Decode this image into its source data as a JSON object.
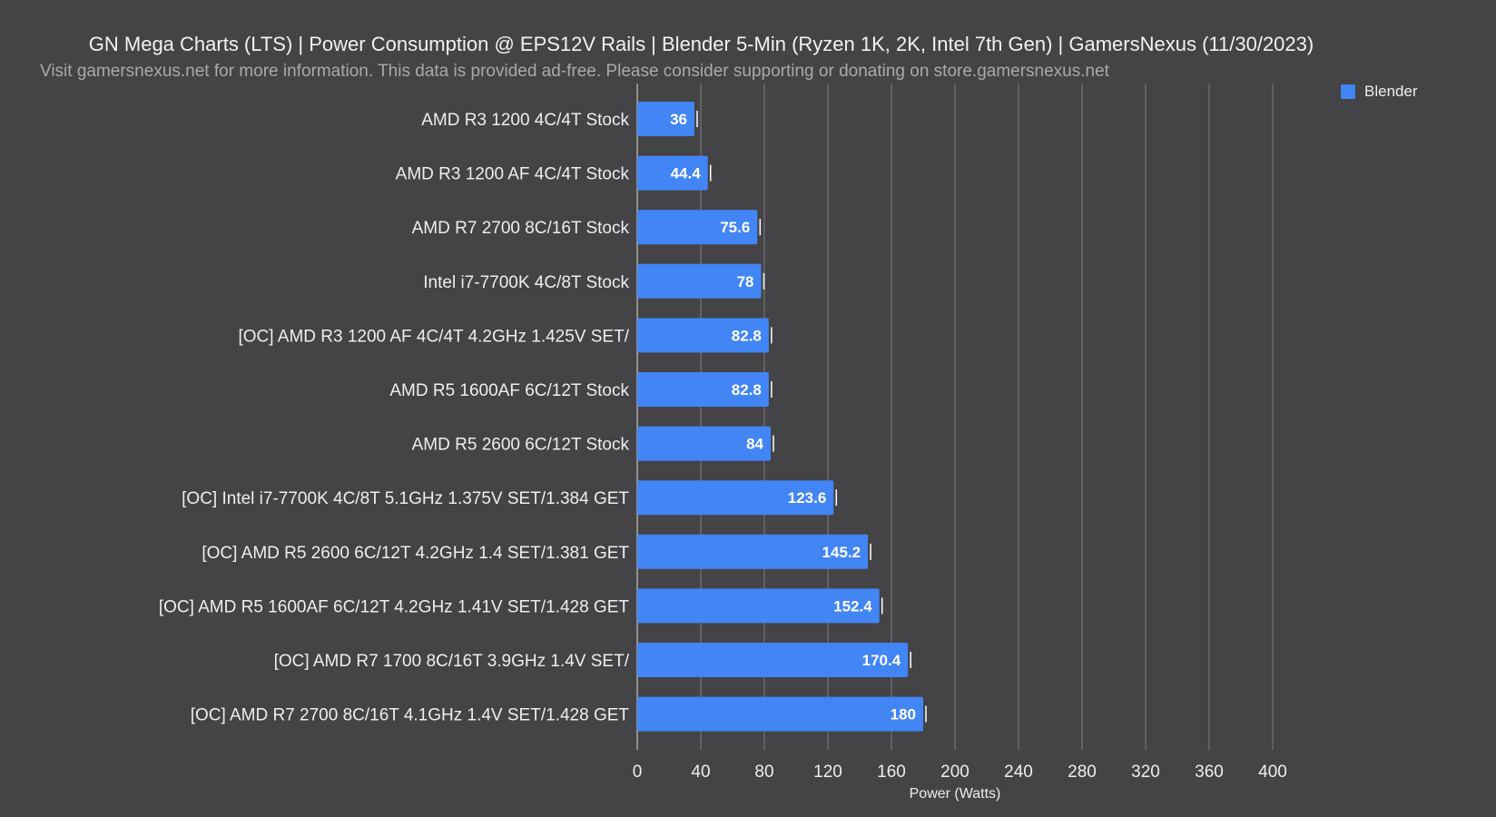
{
  "chart_data": {
    "type": "bar",
    "orientation": "horizontal",
    "title": "GN Mega Charts (LTS) | Power Consumption @ EPS12V Rails | Blender 5-Min (Ryzen 1K, 2K, Intel 7th Gen) | GamersNexus (11/30/2023)",
    "subtitle": "Visit gamersnexus.net for more information. This data is provided ad-free. Please consider supporting or donating on store.gamersnexus.net",
    "xlabel": "Power (Watts)",
    "ylabel": "",
    "xlim": [
      0,
      400
    ],
    "ticks": [
      0,
      40,
      80,
      120,
      160,
      200,
      240,
      280,
      320,
      360,
      400
    ],
    "grid": true,
    "legend_position": "top-right",
    "bar_color": "#4285f4",
    "categories": [
      "AMD R3 1200 4C/4T Stock",
      "AMD R3 1200 AF 4C/4T Stock",
      "AMD R7 2700 8C/16T Stock",
      "Intel i7-7700K 4C/8T Stock",
      "[OC] AMD R3 1200 AF 4C/4T 4.2GHz 1.425V SET/",
      "AMD R5 1600AF 6C/12T Stock",
      "AMD R5 2600 6C/12T Stock",
      "[OC] Intel i7-7700K 4C/8T 5.1GHz 1.375V SET/1.384 GET",
      "[OC] AMD R5 2600 6C/12T 4.2GHz 1.4 SET/1.381 GET",
      "[OC] AMD R5 1600AF 6C/12T 4.2GHz 1.41V SET/1.428 GET",
      "[OC] AMD R7 1700 8C/16T 3.9GHz 1.4V SET/",
      "[OC] AMD R7 2700 8C/16T 4.1GHz 1.4V SET/1.428 GET"
    ],
    "series": [
      {
        "name": "Blender",
        "values": [
          36,
          44.4,
          75.6,
          78,
          82.8,
          82.8,
          84,
          123.6,
          145.2,
          152.4,
          170.4,
          180
        ]
      }
    ]
  }
}
